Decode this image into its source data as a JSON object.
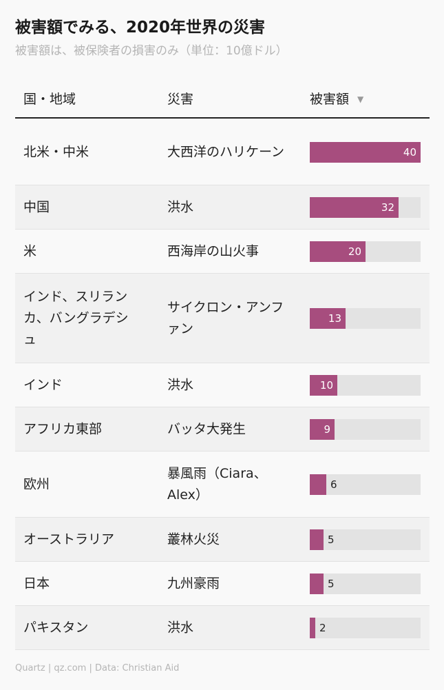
{
  "title": "被害額でみる、2020年世界の災害",
  "subtitle": "被害額は、被保険者の損害のみ（単位：10億ドル）",
  "headers": {
    "region": "国・地域",
    "disaster": "災害",
    "damage": "被害額",
    "sort_icon": "▼"
  },
  "footer": "Quartz | qz.com | Data: Christian Aid",
  "colors": {
    "bar": "#a74d7e",
    "track": "#e3e3e3"
  },
  "chart_data": {
    "type": "table",
    "columns": [
      "国・地域",
      "災害",
      "被害額"
    ],
    "xlim": [
      0,
      40
    ],
    "rows": [
      {
        "region": "北米・中米",
        "disaster": "大西洋のハリケーン",
        "value": 40
      },
      {
        "region": "中国",
        "disaster": "洪水",
        "value": 32
      },
      {
        "region": "米",
        "disaster": "西海岸の山火事",
        "value": 20
      },
      {
        "region": "インド、スリランカ、バングラデシュ",
        "disaster": "サイクロン・アンファン",
        "value": 13
      },
      {
        "region": "インド",
        "disaster": "洪水",
        "value": 10
      },
      {
        "region": "アフリカ東部",
        "disaster": "バッタ大発生",
        "value": 9
      },
      {
        "region": "欧州",
        "disaster": "暴風雨（Ciara、Alex）",
        "value": 6
      },
      {
        "region": "オーストラリア",
        "disaster": "叢林火災",
        "value": 5
      },
      {
        "region": "日本",
        "disaster": "九州豪雨",
        "value": 5
      },
      {
        "region": "パキスタン",
        "disaster": "洪水",
        "value": 2
      }
    ]
  }
}
